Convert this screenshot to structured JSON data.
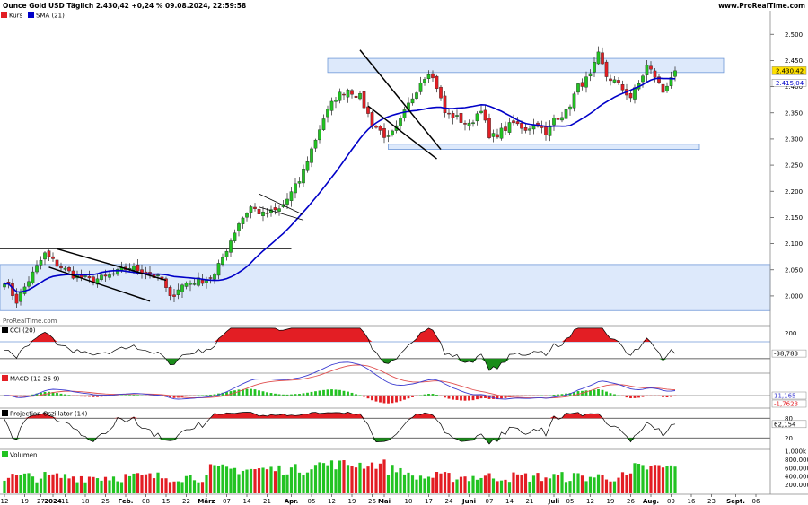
{
  "header": {
    "title": "Ounce Gold USD Täglich 2.430,42 +0,24 % 09.08.2024, 22:59:58",
    "url": "www.ProRealTime.com",
    "watermark": "ProRealTime.com"
  },
  "colors": {
    "up": "#22c322",
    "down": "#e31e24",
    "sma": "#0000c8",
    "zone_fill": "#dde9fb",
    "zone_stroke": "#6f98d8",
    "price_tag": "#ffe000",
    "sma_tag": "#ffffff",
    "cci_fill_up": "#e31e24",
    "cci_fill_down": "#1a8c1a",
    "macd_line": "#3c3cd0",
    "signal_line": "#e05050"
  },
  "chart_data": [
    {
      "id": "price",
      "type": "candlestick",
      "legend": [
        {
          "label": "Kurs",
          "color": "#e31e24"
        },
        {
          "label": "SMA (21)",
          "color": "#0000c8"
        }
      ],
      "ylim": [
        1945,
        2545
      ],
      "y_ticks": [
        "2.500",
        "2.450",
        "2.400",
        "2.350",
        "2.300",
        "2.250",
        "2.200",
        "2.150",
        "2.100",
        "2.050",
        "2.000"
      ],
      "y_tick_values": [
        2500,
        2450,
        2400,
        2350,
        2300,
        2250,
        2200,
        2150,
        2100,
        2050,
        2000
      ],
      "last_price_label": "2.430,42",
      "last_price": 2430.42,
      "sma_label": "2.415,04",
      "sma_last": 2415.04,
      "x_ticks": [
        {
          "i": 0,
          "label": "12"
        },
        {
          "i": 5,
          "label": "19"
        },
        {
          "i": 9,
          "label": "27"
        },
        {
          "i": 12,
          "label": "2024"
        },
        {
          "i": 15,
          "label": "11"
        },
        {
          "i": 20,
          "label": "18"
        },
        {
          "i": 25,
          "label": "25"
        },
        {
          "i": 30,
          "label": "Feb."
        },
        {
          "i": 35,
          "label": "08"
        },
        {
          "i": 40,
          "label": "15"
        },
        {
          "i": 45,
          "label": "22"
        },
        {
          "i": 50,
          "label": "März"
        },
        {
          "i": 55,
          "label": "07"
        },
        {
          "i": 60,
          "label": "14"
        },
        {
          "i": 65,
          "label": "21"
        },
        {
          "i": 71,
          "label": "Apr."
        },
        {
          "i": 76,
          "label": "05"
        },
        {
          "i": 81,
          "label": "12"
        },
        {
          "i": 86,
          "label": "19"
        },
        {
          "i": 91,
          "label": "26"
        },
        {
          "i": 94,
          "label": "Mai"
        },
        {
          "i": 100,
          "label": "10"
        },
        {
          "i": 105,
          "label": "17"
        },
        {
          "i": 110,
          "label": "24"
        },
        {
          "i": 115,
          "label": "Juni"
        },
        {
          "i": 120,
          "label": "07"
        },
        {
          "i": 125,
          "label": "14"
        },
        {
          "i": 130,
          "label": "21"
        },
        {
          "i": 136,
          "label": "Juli"
        },
        {
          "i": 140,
          "label": "05"
        },
        {
          "i": 145,
          "label": "12"
        },
        {
          "i": 150,
          "label": "19"
        },
        {
          "i": 155,
          "label": "26"
        },
        {
          "i": 160,
          "label": "Aug."
        },
        {
          "i": 165,
          "label": "09"
        },
        {
          "i": 170,
          "label": "16"
        },
        {
          "i": 175,
          "label": "23"
        },
        {
          "i": 181,
          "label": "Sept."
        },
        {
          "i": 186,
          "label": "06"
        }
      ],
      "x_slots": 190,
      "candle_count": 167,
      "waypoints": [
        [
          0,
          2030
        ],
        [
          3,
          1990
        ],
        [
          6,
          2030
        ],
        [
          10,
          2080
        ],
        [
          13,
          2060
        ],
        [
          17,
          2040
        ],
        [
          21,
          2030
        ],
        [
          25,
          2035
        ],
        [
          28,
          2045
        ],
        [
          31,
          2055
        ],
        [
          35,
          2045
        ],
        [
          39,
          2030
        ],
        [
          41,
          1995
        ],
        [
          43,
          2015
        ],
        [
          45,
          2025
        ],
        [
          49,
          2030
        ],
        [
          52,
          2040
        ],
        [
          55,
          2090
        ],
        [
          58,
          2140
        ],
        [
          61,
          2170
        ],
        [
          64,
          2155
        ],
        [
          68,
          2165
        ],
        [
          70,
          2185
        ],
        [
          73,
          2220
        ],
        [
          76,
          2280
        ],
        [
          79,
          2340
        ],
        [
          82,
          2380
        ],
        [
          85,
          2395
        ],
        [
          88,
          2380
        ],
        [
          91,
          2330
        ],
        [
          93,
          2315
        ],
        [
          95,
          2300
        ],
        [
          97,
          2320
        ],
        [
          99,
          2350
        ],
        [
          101,
          2380
        ],
        [
          103,
          2410
        ],
        [
          105,
          2430
        ],
        [
          107,
          2400
        ],
        [
          109,
          2350
        ],
        [
          112,
          2340
        ],
        [
          115,
          2325
        ],
        [
          118,
          2360
        ],
        [
          120,
          2300
        ],
        [
          123,
          2315
        ],
        [
          126,
          2330
        ],
        [
          129,
          2320
        ],
        [
          132,
          2330
        ],
        [
          134,
          2305
        ],
        [
          136,
          2340
        ],
        [
          139,
          2350
        ],
        [
          142,
          2400
        ],
        [
          145,
          2420
        ],
        [
          147,
          2460
        ],
        [
          149,
          2420
        ],
        [
          151,
          2410
        ],
        [
          153,
          2395
        ],
        [
          155,
          2380
        ],
        [
          157,
          2405
        ],
        [
          159,
          2440
        ],
        [
          161,
          2420
        ],
        [
          163,
          2390
        ],
        [
          165,
          2420
        ],
        [
          166,
          2430
        ]
      ],
      "zones": [
        {
          "name": "upper-resistance-zone",
          "i0": 80,
          "i1": 178,
          "p0": 2427,
          "p1": 2454
        },
        {
          "name": "mid-support-zone",
          "i0": 95,
          "i1": 172,
          "p0": 2280,
          "p1": 2290
        },
        {
          "name": "lower-range-zone",
          "i0": 0,
          "i1": 190,
          "p0": 1972,
          "p1": 2060
        }
      ],
      "hlines": [
        {
          "name": "horizontal-line-2090",
          "i0": 0,
          "i1": 71,
          "p": 2090
        }
      ],
      "trendlines": [
        {
          "name": "channel-line-upper",
          "i0": 13,
          "p0": 2090,
          "i1": 40,
          "p1": 2030
        },
        {
          "name": "channel-line-lower",
          "i0": 11,
          "p0": 2055,
          "i1": 36,
          "p1": 1990
        },
        {
          "name": "pennant-line-upper",
          "i0": 63,
          "p0": 2195,
          "i1": 74,
          "p1": 2155
        },
        {
          "name": "pennant-line-lower",
          "i0": 63,
          "p0": 2170,
          "i1": 74,
          "p1": 2145
        },
        {
          "name": "wedge-line-upper",
          "i0": 88,
          "p0": 2470,
          "i1": 108,
          "p1": 2280
        },
        {
          "name": "wedge-line-lower",
          "i0": 90,
          "p0": 2363,
          "i1": 107,
          "p1": 2262
        }
      ]
    },
    {
      "id": "cci",
      "type": "line",
      "legend": [
        {
          "label": "CCI (20)",
          "color": "#000000"
        }
      ],
      "ylim": [
        -260,
        280
      ],
      "y_ticks": [
        "200"
      ],
      "y_tick_values": [
        200
      ],
      "levels": [
        100,
        -100
      ],
      "last_label": "-38,783",
      "last_value": -38.783
    },
    {
      "id": "macd",
      "type": "line",
      "legend": [
        {
          "label": "MACD (12 26 9)",
          "color": "#000000"
        }
      ],
      "ylim": [
        -25,
        45
      ],
      "last_labels": [
        "11,165",
        "-1,7623"
      ],
      "last_values": [
        11.165,
        -1.7623
      ]
    },
    {
      "id": "projection",
      "type": "line",
      "legend": [
        {
          "label": "Projection Oszillator (14)",
          "color": "#000000"
        }
      ],
      "ylim": [
        -12,
        108
      ],
      "y_ticks": [
        "80",
        "20"
      ],
      "y_tick_values": [
        80,
        20
      ],
      "levels": [
        80,
        20
      ],
      "last_label": "62,154",
      "last_value": 62.154
    },
    {
      "id": "volume",
      "type": "bar",
      "legend": [
        {
          "label": "Volumen",
          "color": "#22c322"
        }
      ],
      "ylim": [
        0,
        1000000
      ],
      "y_ticks": [
        "1.000k",
        "800.000",
        "600.000",
        "400.000",
        "200.000"
      ],
      "y_tick_values": [
        1000000,
        800000,
        600000,
        400000,
        200000
      ]
    }
  ]
}
